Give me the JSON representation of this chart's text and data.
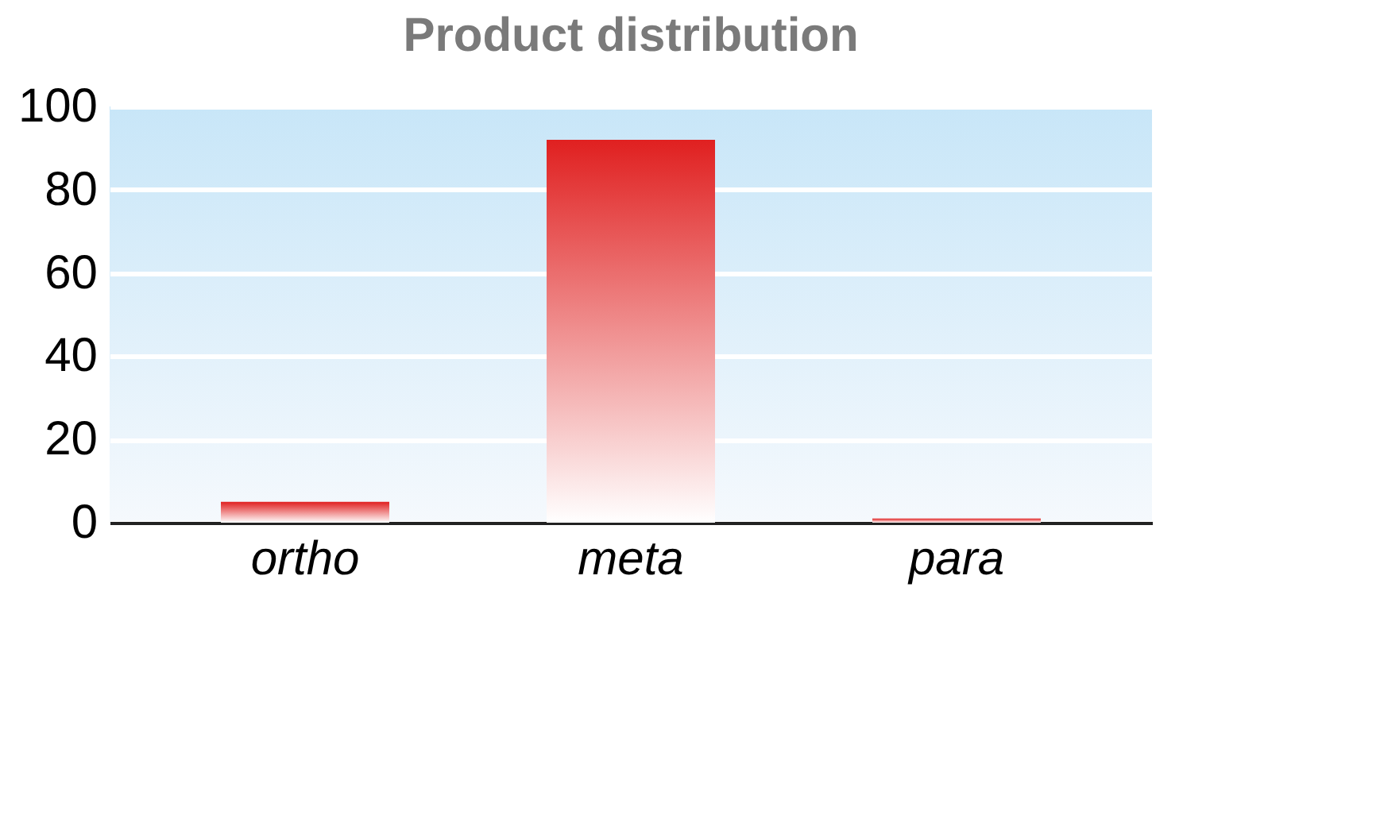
{
  "chart_data": {
    "type": "bar",
    "title": "Product distribution",
    "categories": [
      "ortho",
      "meta",
      "para"
    ],
    "values": [
      5,
      92,
      1
    ],
    "color": "#e02020",
    "ylim": [
      0,
      100
    ],
    "yticks": [
      0,
      20,
      40,
      60,
      80,
      100
    ],
    "grid": "y"
  }
}
